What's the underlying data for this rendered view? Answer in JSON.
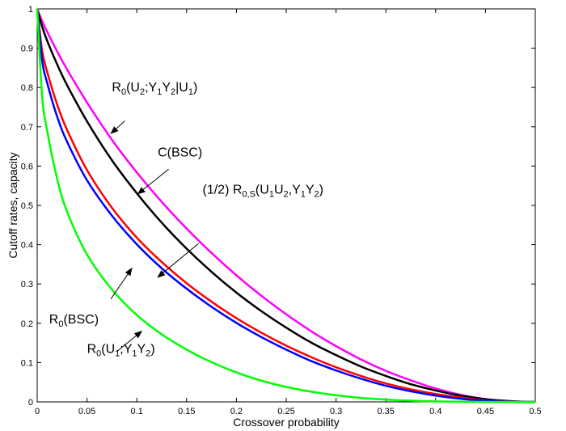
{
  "chart_data": {
    "type": "line",
    "title": "",
    "xlabel": "Crossover probability",
    "ylabel": "Cutoff rates, capacity",
    "xlim": [
      0,
      0.5
    ],
    "ylim": [
      0,
      1
    ],
    "xticks": [
      0,
      0.05,
      0.1,
      0.15,
      0.2,
      0.25,
      0.3,
      0.35,
      0.4,
      0.45,
      0.5
    ],
    "xtick_labels": [
      "0",
      "0.05",
      "0.1",
      "0.15",
      "0.2",
      "0.25",
      "0.3",
      "0.35",
      "0.4",
      "0.45",
      "0.5"
    ],
    "yticks": [
      0,
      0.1,
      0.2,
      0.3,
      0.4,
      0.5,
      0.6,
      0.7,
      0.8,
      0.9,
      1
    ],
    "ytick_labels": [
      "0",
      "0.1",
      "0.2",
      "0.3",
      "0.4",
      "0.5",
      "0.6",
      "0.7",
      "0.8",
      "0.9",
      "1"
    ],
    "grid": false,
    "legend": "none",
    "x": [
      0,
      0.005,
      0.01,
      0.02,
      0.03,
      0.05,
      0.075,
      0.1,
      0.125,
      0.15,
      0.175,
      0.2,
      0.225,
      0.25,
      0.275,
      0.3,
      0.325,
      0.35,
      0.375,
      0.4,
      0.425,
      0.45,
      0.475,
      0.5
    ],
    "series": [
      {
        "color": "#ff00ff",
        "values": [
          1,
          0.969,
          0.942,
          0.892,
          0.846,
          0.762,
          0.667,
          0.584,
          0.509,
          0.441,
          0.379,
          0.322,
          0.27,
          0.223,
          0.18,
          0.142,
          0.108,
          0.079,
          0.055,
          0.034,
          0.018,
          0.007,
          0.0015,
          0
        ]
      },
      {
        "color": "#000000",
        "values": [
          1,
          0.955,
          0.919,
          0.859,
          0.806,
          0.714,
          0.615,
          0.531,
          0.456,
          0.39,
          0.331,
          0.278,
          0.231,
          0.189,
          0.151,
          0.119,
          0.09,
          0.066,
          0.045,
          0.029,
          0.016,
          0.007,
          0.002,
          0
        ]
      },
      {
        "color": "#ff0000",
        "values": [
          1,
          0.893,
          0.84,
          0.757,
          0.692,
          0.59,
          0.494,
          0.418,
          0.356,
          0.302,
          0.255,
          0.213,
          0.176,
          0.143,
          0.114,
          0.088,
          0.066,
          0.047,
          0.032,
          0.02,
          0.011,
          0.004,
          0.0008,
          0
        ]
      },
      {
        "color": "#0000ff",
        "values": [
          1,
          0.868,
          0.812,
          0.726,
          0.662,
          0.564,
          0.474,
          0.401,
          0.34,
          0.288,
          0.242,
          0.201,
          0.165,
          0.133,
          0.104,
          0.08,
          0.059,
          0.041,
          0.027,
          0.016,
          0.008,
          0.003,
          0.0006,
          0
        ]
      },
      {
        "color": "#00ff00",
        "values": [
          1,
          0.777,
          0.69,
          0.568,
          0.484,
          0.375,
          0.286,
          0.221,
          0.172,
          0.133,
          0.101,
          0.075,
          0.054,
          0.038,
          0.026,
          0.017,
          0.01,
          0.006,
          0.003,
          0.0013,
          0.0005,
          0.0001,
          1e-05,
          0
        ]
      }
    ],
    "annotations": [
      {
        "label": "R0(U2;Y1Y2|U1)",
        "parts": [
          [
            "R",
            false
          ],
          [
            "0",
            true
          ],
          [
            "(U",
            false
          ],
          [
            "2",
            true
          ],
          [
            ";Y",
            false
          ],
          [
            "1",
            true
          ],
          [
            "Y",
            false
          ],
          [
            "2",
            true
          ],
          [
            "|U",
            false
          ],
          [
            "1",
            true
          ],
          [
            ")",
            false
          ]
        ],
        "text_at": [
          0.075,
          0.79
        ],
        "arrow_from": [
          0.088,
          0.715
        ],
        "arrow_to": [
          0.074,
          0.683
        ]
      },
      {
        "label": "C(BSC)",
        "parts": [
          [
            "C(BSC)",
            false
          ]
        ],
        "text_at": [
          0.121,
          0.625
        ],
        "arrow_from": [
          0.132,
          0.592
        ],
        "arrow_to": [
          0.101,
          0.529
        ]
      },
      {
        "label": "(1/2) R0,S(U1U2,Y1Y2)",
        "parts": [
          [
            "(1/2) R",
            false
          ],
          [
            "0,S",
            true
          ],
          [
            "(U",
            false
          ],
          [
            "1",
            true
          ],
          [
            "U",
            false
          ],
          [
            "2",
            true
          ],
          [
            ",Y",
            false
          ],
          [
            "1",
            true
          ],
          [
            "Y",
            false
          ],
          [
            "2",
            true
          ],
          [
            ")",
            false
          ]
        ],
        "text_at": [
          0.166,
          0.53
        ],
        "arrow_from": [
          0.162,
          0.403
        ],
        "arrow_to": [
          0.121,
          0.317
        ]
      },
      {
        "label": "R0(BSC)",
        "parts": [
          [
            "R",
            false
          ],
          [
            "0",
            true
          ],
          [
            "(BSC)",
            false
          ]
        ],
        "text_at": [
          0.012,
          0.2
        ],
        "arrow_from": [
          0.074,
          0.262
        ],
        "arrow_to": [
          0.095,
          0.34
        ]
      },
      {
        "label": "R0(U1;Y1Y2)",
        "parts": [
          [
            "R",
            false
          ],
          [
            "0",
            true
          ],
          [
            "(U",
            false
          ],
          [
            "1",
            true
          ],
          [
            ";Y",
            false
          ],
          [
            "1",
            true
          ],
          [
            "Y",
            false
          ],
          [
            "2",
            true
          ],
          [
            ")",
            false
          ]
        ],
        "text_at": [
          0.05,
          0.125
        ],
        "arrow_from": [
          0.08,
          0.128
        ],
        "arrow_to": [
          0.105,
          0.18
        ]
      }
    ]
  }
}
